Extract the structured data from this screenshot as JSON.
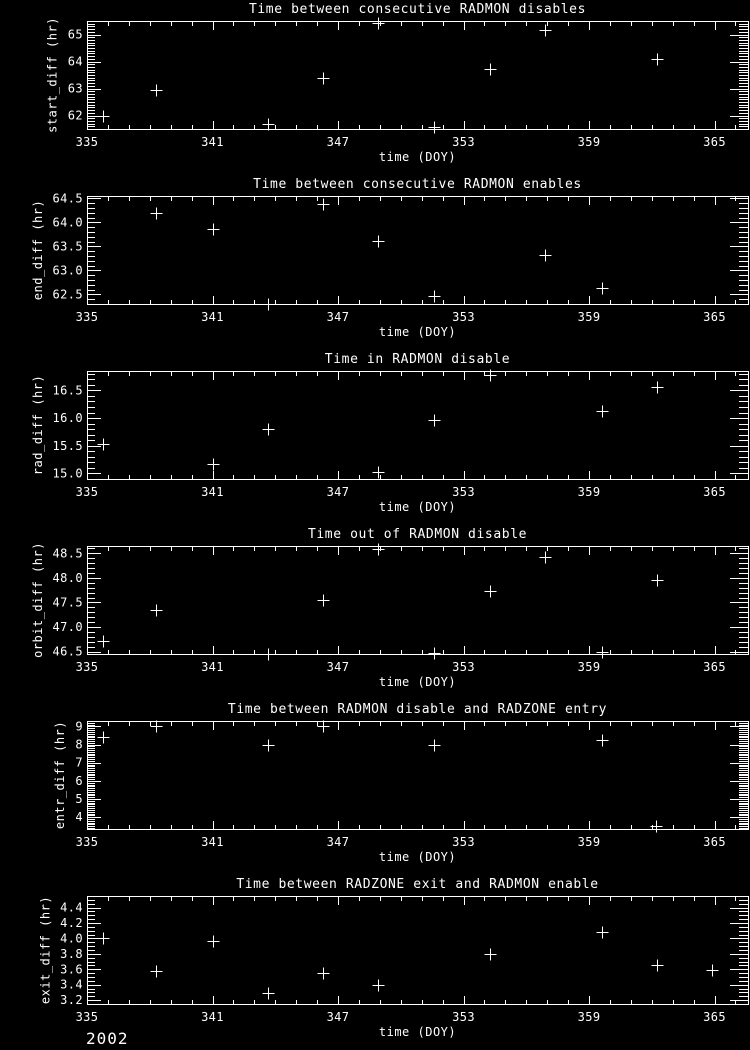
{
  "page": {
    "background": "#000000",
    "foreground": "#ffffff",
    "year_label": "2002"
  },
  "chart_data": [
    {
      "id": "start_diff",
      "type": "scatter",
      "title": "Time between consecutive RADMON disables",
      "xlabel": "time (DOY)",
      "ylabel": "start_diff (hr)",
      "xlim": [
        335,
        366.6
      ],
      "ylim": [
        61.5,
        65.5
      ],
      "xticks": [
        335,
        341,
        347,
        353,
        359,
        365
      ],
      "xtick_labels": [
        "335",
        "341",
        "347",
        "353",
        "359",
        "365"
      ],
      "yticks": [
        62,
        63,
        64,
        65
      ],
      "ytick_labels": [
        "62",
        "63",
        "64",
        "65"
      ],
      "x_minor_step": 1,
      "y_minor_step": 0.1,
      "marker": "plus",
      "points": [
        [
          335.75,
          62.0
        ],
        [
          338.3,
          62.93
        ],
        [
          343.65,
          61.67
        ],
        [
          346.3,
          63.4
        ],
        [
          348.9,
          65.42
        ],
        [
          351.6,
          61.58
        ],
        [
          354.25,
          63.73
        ],
        [
          356.9,
          65.15
        ],
        [
          362.25,
          64.08
        ]
      ]
    },
    {
      "id": "end_diff",
      "type": "scatter",
      "title": "Time between consecutive RADMON enables",
      "xlabel": "time (DOY)",
      "ylabel": "end_diff (hr)",
      "xlim": [
        335,
        366.6
      ],
      "ylim": [
        62.3,
        64.55
      ],
      "xticks": [
        335,
        341,
        347,
        353,
        359,
        365
      ],
      "xtick_labels": [
        "335",
        "341",
        "347",
        "353",
        "359",
        "365"
      ],
      "yticks": [
        62.5,
        63.0,
        63.5,
        64.0,
        64.5
      ],
      "ytick_labels": [
        "62.5",
        "63.0",
        "63.5",
        "64.0",
        "64.5"
      ],
      "x_minor_step": 1,
      "y_minor_step": 0.1,
      "marker": "plus",
      "points": [
        [
          338.3,
          64.2
        ],
        [
          341.0,
          63.86
        ],
        [
          343.65,
          62.31
        ],
        [
          346.3,
          64.39
        ],
        [
          348.9,
          63.62
        ],
        [
          351.6,
          62.46
        ],
        [
          356.9,
          63.32
        ],
        [
          359.6,
          62.64
        ]
      ]
    },
    {
      "id": "rad_diff",
      "type": "scatter",
      "title": "Time in RADMON disable",
      "xlabel": "time (DOY)",
      "ylabel": "rad_diff (hr)",
      "xlim": [
        335,
        366.6
      ],
      "ylim": [
        14.9,
        16.85
      ],
      "xticks": [
        335,
        341,
        347,
        353,
        359,
        365
      ],
      "xtick_labels": [
        "335",
        "341",
        "347",
        "353",
        "359",
        "365"
      ],
      "yticks": [
        15.0,
        15.5,
        16.0,
        16.5
      ],
      "ytick_labels": [
        "15.0",
        "15.5",
        "16.0",
        "16.5"
      ],
      "x_minor_step": 1,
      "y_minor_step": 0.1,
      "marker": "plus",
      "points": [
        [
          335.75,
          15.53
        ],
        [
          341.0,
          15.17
        ],
        [
          343.65,
          15.8
        ],
        [
          348.9,
          15.03
        ],
        [
          351.6,
          15.96
        ],
        [
          354.25,
          16.77
        ],
        [
          359.6,
          16.13
        ],
        [
          362.25,
          16.56
        ]
      ]
    },
    {
      "id": "orbit_diff",
      "type": "scatter",
      "title": "Time out of RADMON disable",
      "xlabel": "time (DOY)",
      "ylabel": "orbit_diff (hr)",
      "xlim": [
        335,
        366.6
      ],
      "ylim": [
        46.45,
        48.65
      ],
      "xticks": [
        335,
        341,
        347,
        353,
        359,
        365
      ],
      "xtick_labels": [
        "335",
        "341",
        "347",
        "353",
        "359",
        "365"
      ],
      "yticks": [
        46.5,
        47.0,
        47.5,
        48.0,
        48.5
      ],
      "ytick_labels": [
        "46.5",
        "47.0",
        "47.5",
        "48.0",
        "48.5"
      ],
      "x_minor_step": 1,
      "y_minor_step": 0.1,
      "marker": "plus",
      "points": [
        [
          335.75,
          46.72
        ],
        [
          338.3,
          47.35
        ],
        [
          343.65,
          46.46
        ],
        [
          346.3,
          47.55
        ],
        [
          348.9,
          48.58
        ],
        [
          351.6,
          46.47
        ],
        [
          354.25,
          47.74
        ],
        [
          356.9,
          48.43
        ],
        [
          359.6,
          46.5
        ],
        [
          362.25,
          47.96
        ]
      ]
    },
    {
      "id": "entr_diff",
      "type": "scatter",
      "title": "Time between RADMON disable and RADZONE entry",
      "xlabel": "time (DOY)",
      "ylabel": "entr_diff (hr)",
      "xlim": [
        335,
        366.6
      ],
      "ylim": [
        3.35,
        9.3
      ],
      "xticks": [
        335,
        341,
        347,
        353,
        359,
        365
      ],
      "xtick_labels": [
        "335",
        "341",
        "347",
        "353",
        "359",
        "365"
      ],
      "yticks": [
        4,
        5,
        6,
        7,
        8,
        9
      ],
      "ytick_labels": [
        "4",
        "5",
        "6",
        "7",
        "8",
        "9"
      ],
      "x_minor_step": 1,
      "y_minor_step": 0.1,
      "marker": "plus",
      "points": [
        [
          335.75,
          8.42
        ],
        [
          338.3,
          9.03
        ],
        [
          343.65,
          7.97
        ],
        [
          346.3,
          9.02
        ],
        [
          351.6,
          8.0
        ],
        [
          359.6,
          8.28
        ],
        [
          362.2,
          3.5
        ]
      ]
    },
    {
      "id": "exit_diff",
      "type": "scatter",
      "title": "Time between RADZONE exit and RADMON enable",
      "xlabel": "time (DOY)",
      "ylabel": "exit_diff (hr)",
      "xlim": [
        335,
        366.6
      ],
      "ylim": [
        3.15,
        4.55
      ],
      "xticks": [
        335,
        341,
        347,
        353,
        359,
        365
      ],
      "xtick_labels": [
        "335",
        "341",
        "347",
        "353",
        "359",
        "365"
      ],
      "yticks": [
        3.2,
        3.4,
        3.6,
        3.8,
        4.0,
        4.2,
        4.4
      ],
      "ytick_labels": [
        "3.2",
        "3.4",
        "3.6",
        "3.8",
        "4.0",
        "4.2",
        "4.4"
      ],
      "x_minor_step": 1,
      "y_minor_step": 0.05,
      "marker": "plus",
      "points": [
        [
          335.75,
          4.0
        ],
        [
          338.3,
          3.58
        ],
        [
          341.0,
          3.97
        ],
        [
          343.65,
          3.29
        ],
        [
          346.3,
          3.55
        ],
        [
          348.9,
          3.4
        ],
        [
          354.25,
          3.8
        ],
        [
          359.6,
          4.08
        ],
        [
          362.25,
          3.66
        ],
        [
          364.9,
          3.59
        ]
      ]
    }
  ]
}
